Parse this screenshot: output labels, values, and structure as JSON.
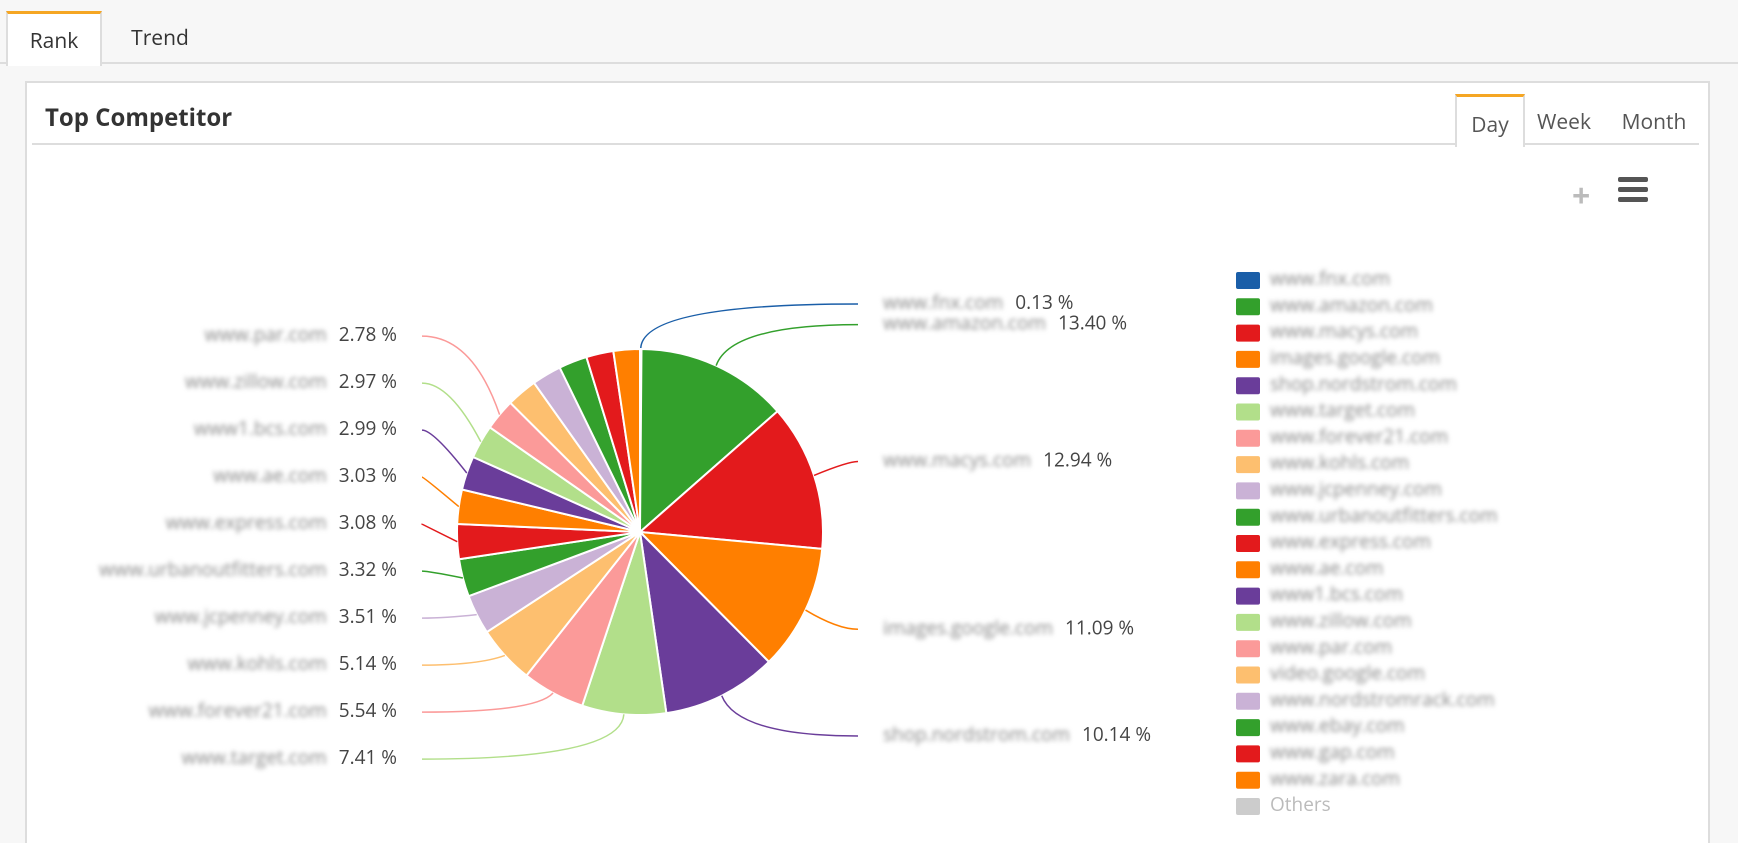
{
  "tabs": [
    "Rank",
    "Trend"
  ],
  "panel": {
    "title": "Top Competitor",
    "periods": [
      "Day",
      "Week",
      "Month"
    ],
    "icons": [
      "+"
    ]
  },
  "chart_data": {
    "type": "pie",
    "categories": [
      "www.fnx.com",
      "www.amazon.com",
      "www.macys.com",
      "images.google.com",
      "shop.nordstrom.com",
      "www.target.com",
      "www.forever21.com",
      "www.kohls.com",
      "www.jcpenney.com",
      "www.urbanoutfitters.com",
      "www.express.com",
      "www.ae.com",
      "www1.bcs.com",
      "www.zillow.com",
      "www.par.com",
      "video.google.com",
      "www.nordstromrack.com",
      "www.ebay.com",
      "www.gap.com",
      "www.zara.com",
      "Others"
    ],
    "values": [
      0.13,
      13.4,
      12.94,
      11.09,
      10.14,
      7.41,
      5.54,
      5.14,
      3.51,
      3.32,
      3.08,
      3.03,
      2.99,
      2.97,
      2.78,
      2.7,
      2.6,
      2.5,
      2.4,
      2.33,
      null
    ],
    "value_labels": [
      "0.13 %",
      "13.40 %",
      "12.94 %",
      "11.09 %",
      "10.14 %",
      "7.41 %",
      "5.54 %",
      "5.14 %",
      "3.51 %",
      "3.32 %",
      "3.08 %",
      "3.03 %",
      "2.99 %",
      "2.97 %",
      "2.78 %",
      null,
      null,
      null,
      null,
      null,
      null
    ],
    "colors": [
      "#1a5ea8",
      "#33a02c",
      "#e31a1c",
      "#ff7f00",
      "#6a3d9a",
      "#b2df8a",
      "#fb9a99",
      "#fdbf6f",
      "#cab2d6",
      "#33a02c",
      "#e31a1c",
      "#ff7f00",
      "#6a3d9a",
      "#b2df8a",
      "#fb9a99",
      "#fdbf6f",
      "#cab2d6",
      "#33a02c",
      "#e31a1c",
      "#ff7f00",
      "#cccccc"
    ],
    "legend": "right"
  }
}
